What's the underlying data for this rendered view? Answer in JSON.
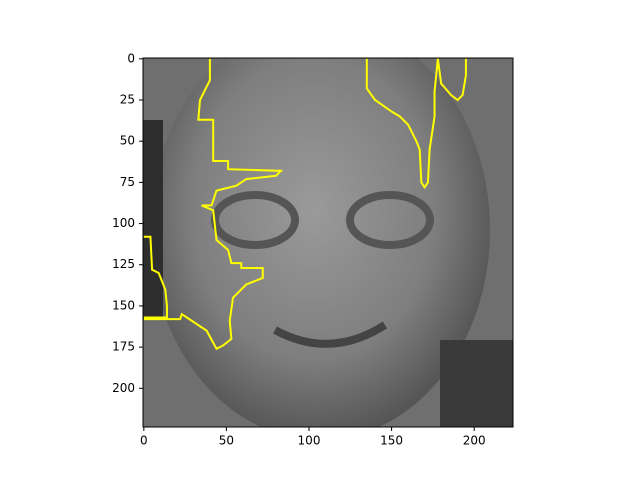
{
  "chart_data": {
    "type": "image",
    "xlim": [
      -0.5,
      223.5
    ],
    "ylim": [
      223.5,
      -0.5
    ],
    "xticks": [
      0,
      50,
      100,
      150,
      200
    ],
    "yticks": [
      0,
      25,
      50,
      75,
      100,
      125,
      150,
      175,
      200
    ],
    "color": "#ffff00",
    "contours": [
      {
        "x": [
          40,
          40,
          34,
          33,
          42,
          42,
          51,
          51,
          83,
          80,
          62,
          56,
          44,
          41,
          35,
          42,
          44,
          51,
          53,
          59,
          59,
          72,
          72,
          62,
          54,
          52,
          53,
          48,
          44,
          38,
          29,
          23,
          22,
          0
        ],
        "y": [
          0,
          13,
          25,
          37,
          37,
          62,
          62,
          67,
          68,
          71,
          73,
          77,
          80,
          89,
          89,
          92,
          110,
          116,
          124,
          124,
          127,
          127,
          133,
          137,
          145,
          159,
          170,
          174,
          176,
          165,
          159,
          155,
          158,
          158
        ]
      },
      {
        "x": [
          0,
          4,
          5,
          9,
          13,
          14,
          14,
          0
        ],
        "y": [
          108,
          108,
          128,
          130,
          140,
          150,
          157,
          157
        ]
      },
      {
        "x": [
          135,
          135,
          140,
          150,
          155,
          160,
          165,
          167,
          168,
          170,
          172,
          173,
          176,
          176,
          178
        ],
        "y": [
          0,
          18,
          25,
          32,
          35,
          40,
          50,
          55,
          75,
          78,
          75,
          55,
          35,
          20,
          0
        ]
      },
      {
        "x": [
          178,
          180,
          186,
          190,
          193,
          195,
          195
        ],
        "y": [
          0,
          15,
          22,
          25,
          22,
          10,
          0
        ]
      }
    ]
  }
}
